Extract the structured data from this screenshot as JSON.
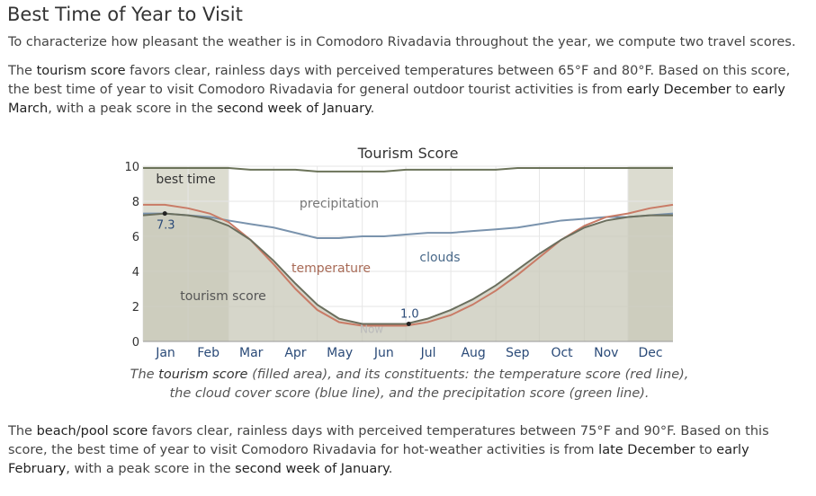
{
  "heading": "Best Time of Year to Visit",
  "intro": "To characterize how pleasant the weather is in Comodoro Rivadavia throughout the year, we compute two travel scores.",
  "tourism": {
    "t1": "The ",
    "score_name": "tourism score",
    "t2": " favors clear, rainless days with perceived temperatures between 65°F and 80°F. Based on this score, the best time of year to visit Comodoro Rivadavia for general outdoor tourist activities is from ",
    "start": "early December",
    "t3": " to ",
    "end": "early March",
    "t4": ", with a peak score in the ",
    "peak": "second week of January",
    "t5": "."
  },
  "caption": {
    "c1": "The ",
    "score_name": "tourism score",
    "c2": " (filled area), and its constituents: the temperature score (red line), the cloud cover score (blue line), and the precipitation score (green line)."
  },
  "beach": {
    "t1": "The ",
    "score_name": "beach/pool score",
    "t2": " favors clear, rainless days with perceived temperatures between 75°F and 90°F. Based on this score, the best time of year to visit Comodoro Rivadavia for hot-weather activities is from ",
    "start": "late December",
    "t3": " to ",
    "end": "early February",
    "t4": ", with a peak score in the ",
    "peak": "second week of January",
    "t5": "."
  },
  "chart_data": {
    "type": "area",
    "title": "Tourism Score",
    "xlabel": "",
    "ylabel": "",
    "ylim": [
      0,
      10
    ],
    "yticks": [
      0,
      2,
      4,
      6,
      8,
      10
    ],
    "months": [
      "Jan",
      "Feb",
      "Mar",
      "Apr",
      "May",
      "Jun",
      "Jul",
      "Aug",
      "Sep",
      "Oct",
      "Nov",
      "Dec"
    ],
    "x_day_of_year": [
      0,
      15,
      31,
      46,
      59,
      74,
      90,
      105,
      120,
      135,
      151,
      166,
      181,
      196,
      212,
      227,
      243,
      258,
      273,
      288,
      304,
      319,
      334,
      349,
      365
    ],
    "series": [
      {
        "name": "tourism score",
        "color": "#6b6f5e",
        "fill": "#c8c8b8",
        "values": [
          7.2,
          7.3,
          7.2,
          7.0,
          6.6,
          5.8,
          4.6,
          3.3,
          2.1,
          1.3,
          1.0,
          1.0,
          1.0,
          1.3,
          1.8,
          2.4,
          3.2,
          4.1,
          5.0,
          5.8,
          6.5,
          6.9,
          7.1,
          7.2,
          7.2
        ]
      },
      {
        "name": "temperature",
        "color": "#c97b66",
        "values": [
          7.8,
          7.8,
          7.6,
          7.3,
          6.8,
          5.8,
          4.4,
          3.0,
          1.8,
          1.1,
          0.9,
          0.9,
          0.9,
          1.1,
          1.5,
          2.1,
          2.9,
          3.8,
          4.8,
          5.8,
          6.6,
          7.1,
          7.3,
          7.6,
          7.8
        ]
      },
      {
        "name": "clouds",
        "color": "#7a93ad",
        "values": [
          7.3,
          7.3,
          7.2,
          7.1,
          6.9,
          6.7,
          6.5,
          6.2,
          5.9,
          5.9,
          6.0,
          6.0,
          6.1,
          6.2,
          6.2,
          6.3,
          6.4,
          6.5,
          6.7,
          6.9,
          7.0,
          7.1,
          7.1,
          7.2,
          7.3
        ]
      },
      {
        "name": "precipitation",
        "color": "#6b7359",
        "values": [
          9.9,
          9.9,
          9.9,
          9.9,
          9.9,
          9.8,
          9.8,
          9.8,
          9.7,
          9.7,
          9.7,
          9.7,
          9.8,
          9.8,
          9.8,
          9.8,
          9.8,
          9.9,
          9.9,
          9.9,
          9.9,
          9.9,
          9.9,
          9.9,
          9.9
        ]
      }
    ],
    "best_time_label": "best time",
    "best_time_ranges": [
      [
        0,
        59
      ],
      [
        334,
        365
      ]
    ],
    "peak_label": "7.3",
    "peak_x": 15,
    "peak_y": 7.3,
    "low_label": "1.0",
    "low_x": 183,
    "low_y": 1.0,
    "now_label": "Now",
    "now_x": 150,
    "labels": {
      "tourism": "tourism score",
      "temperature": "temperature",
      "clouds": "clouds",
      "precipitation": "precipitation"
    },
    "grid": true
  }
}
